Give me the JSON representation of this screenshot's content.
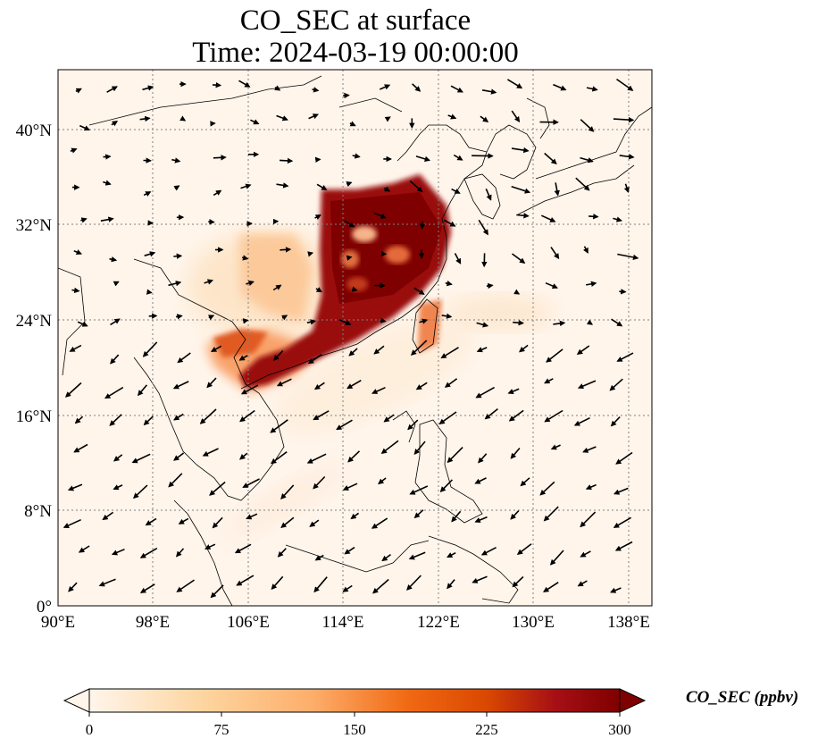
{
  "title": {
    "line1": "CO_SEC at surface",
    "line2": "Time: 2024-03-19 00:00:00"
  },
  "axes": {
    "lat_ticks": [
      "0°",
      "8°N",
      "16°N",
      "24°N",
      "32°N",
      "40°N"
    ],
    "lon_ticks": [
      "90°E",
      "98°E",
      "106°E",
      "114°E",
      "122°E",
      "130°E",
      "138°E"
    ],
    "lon_range": [
      90,
      140
    ],
    "lat_range": [
      0,
      45
    ],
    "gridlines": true
  },
  "colorbar": {
    "label": "CO_SEC (ppbv)",
    "ticks": [
      "0",
      "75",
      "150",
      "225",
      "300"
    ],
    "range": [
      0,
      300
    ],
    "extend": "both",
    "colormap": [
      "#fff5eb",
      "#fdd49e",
      "#fdae6b",
      "#f16913",
      "#d94801",
      "#a50f15",
      "#7f0000"
    ]
  },
  "colors": {
    "coast": "#000000",
    "grid": "#808080",
    "background": "#fff5eb"
  }
}
